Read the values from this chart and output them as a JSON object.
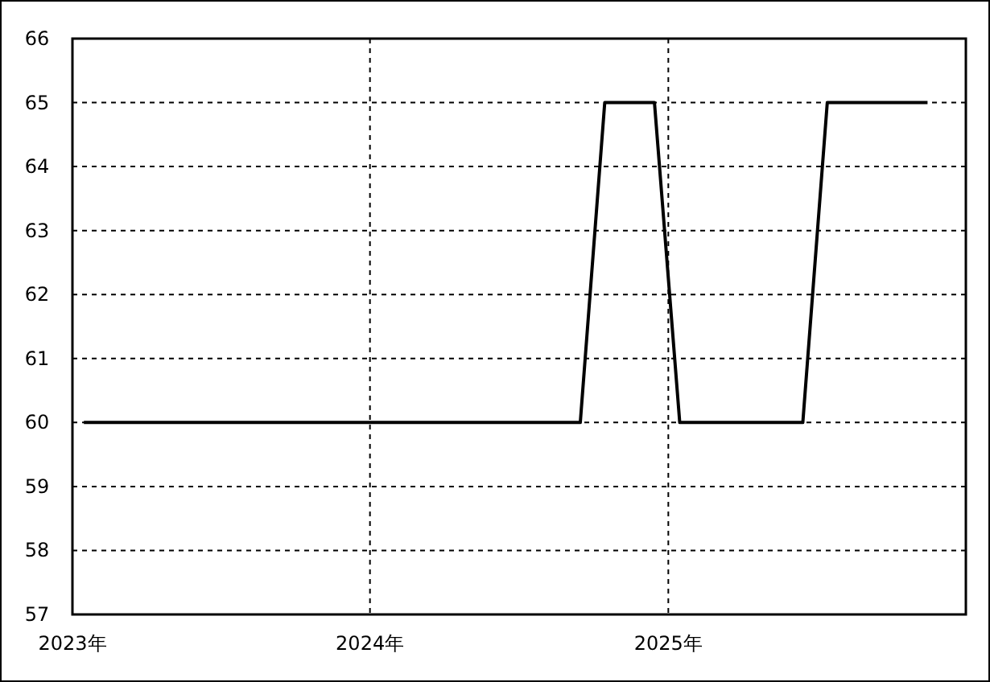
{
  "chart_data": {
    "type": "line",
    "color": "#000000",
    "x": [
      "2023-01-15",
      "2024-09-15",
      "2024-10-15",
      "2024-12-15",
      "2025-01-15",
      "2025-06-15",
      "2025-07-15",
      "2025-11-15"
    ],
    "values": [
      60,
      60,
      65,
      65,
      60,
      60,
      65,
      65
    ],
    "xlim": [
      "2023-01-01",
      "2026-01-01"
    ],
    "xticks": [
      {
        "value": "2023-01-01",
        "label": "2023年"
      },
      {
        "value": "2024-01-01",
        "label": "2024年"
      },
      {
        "value": "2025-01-01",
        "label": "2025年"
      }
    ],
    "ylim": [
      57,
      66
    ],
    "yticks": [
      57,
      58,
      59,
      60,
      61,
      62,
      63,
      64,
      65,
      66
    ],
    "grid": true
  }
}
